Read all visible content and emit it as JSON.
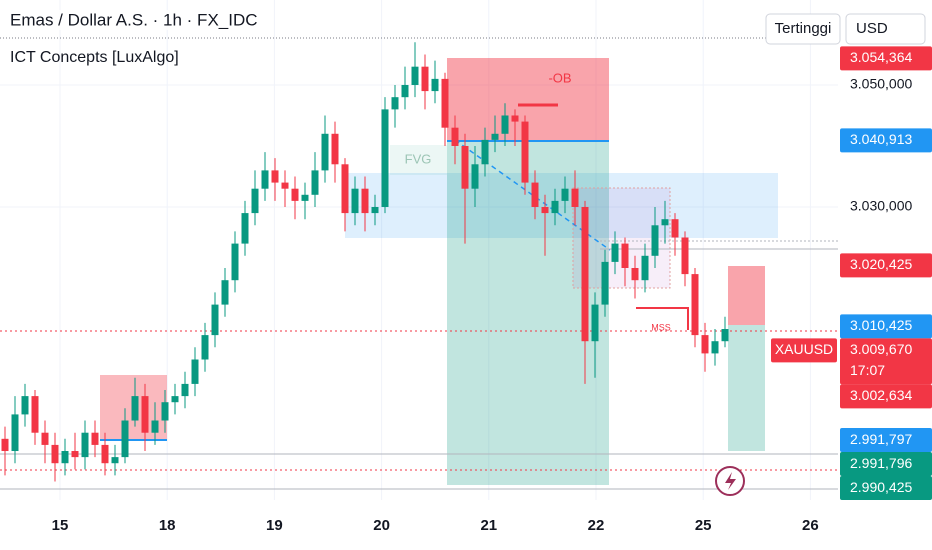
{
  "chart_data": {
    "type": "candlestick",
    "title": "Emas / Dollar A.S. · 1h · FX_IDC",
    "subtitle": "ICT Concepts [LuxAlgo]",
    "buttons": [
      "Tertinggi",
      "USD"
    ],
    "annotations": {
      "fvg": "FVG",
      "ob": "-OB",
      "mss": "MSS"
    },
    "symbol": "XAUUSD",
    "countdown": "17:07",
    "up_color": "#089981",
    "down_color": "#f23645",
    "grid": true,
    "open": [
      2992,
      2990,
      2996,
      2999,
      2993,
      2991,
      2988,
      2990,
      2989,
      2993,
      2991,
      2988,
      2989,
      2995,
      2999,
      2993,
      2995,
      2998,
      2999,
      3001,
      3005,
      3009,
      3014,
      3018,
      3024,
      3029,
      3033,
      3036,
      3034,
      3033,
      3031,
      3032,
      3036,
      3042,
      3037,
      3029,
      3033,
      3029,
      3030,
      3046,
      3048,
      3050,
      3053,
      3049,
      3051,
      3043,
      3040,
      3033,
      3037,
      3041,
      3042,
      3045,
      3044,
      3034,
      3030,
      3029,
      3031,
      3033,
      3030,
      3008,
      3014,
      3021,
      3024,
      3020,
      3018,
      3022,
      3027,
      3028,
      3025,
      3019,
      3009,
      3006,
      3008
    ],
    "high": [
      2994,
      2999,
      3001,
      3000,
      2995,
      2993,
      2992,
      2993,
      2995,
      2995,
      2993,
      2991,
      2997,
      3002,
      3001,
      2998,
      3000,
      3001,
      3003,
      3007,
      3011,
      3016,
      3020,
      3026,
      3031,
      3036,
      3039,
      3038,
      3036,
      3035,
      3034,
      3039,
      3045,
      3044,
      3038,
      3035,
      3035,
      3032,
      3048,
      3050,
      3053,
      3057,
      3055,
      3054,
      3052,
      3045,
      3042,
      3040,
      3043,
      3045,
      3047,
      3046,
      3045,
      3036,
      3032,
      3033,
      3035,
      3036,
      3031,
      3016,
      3023,
      3026,
      3025,
      3022,
      3024,
      3030,
      3031,
      3029,
      3026,
      3020,
      3011,
      3010,
      3012
    ],
    "low": [
      2986,
      2988,
      2994,
      2991,
      2988,
      2985,
      2986,
      2987,
      2987,
      2989,
      2986,
      2986,
      2988,
      2994,
      2990,
      2991,
      2993,
      2996,
      2997,
      2999,
      3003,
      3007,
      3012,
      3016,
      3022,
      3027,
      3031,
      3031,
      3030,
      3028,
      3028,
      3030,
      3034,
      3034,
      3026,
      3027,
      3026,
      3027,
      3029,
      3043,
      3046,
      3048,
      3046,
      3047,
      3040,
      3037,
      3024,
      3030,
      3035,
      3039,
      3040,
      3040,
      3032,
      3028,
      3022,
      3027,
      3029,
      3027,
      3001,
      3002,
      3012,
      3019,
      3017,
      3015,
      3016,
      3020,
      3024,
      3022,
      3017,
      3007,
      3003,
      3004,
      3007
    ],
    "close": [
      2990,
      2996,
      2999,
      2993,
      2991,
      2988,
      2990,
      2989,
      2993,
      2991,
      2988,
      2989,
      2995,
      2999,
      2993,
      2995,
      2998,
      2999,
      3001,
      3005,
      3009,
      3014,
      3018,
      3024,
      3029,
      3033,
      3036,
      3034,
      3033,
      3031,
      3032,
      3036,
      3042,
      3037,
      3029,
      3033,
      3029,
      3030,
      3046,
      3048,
      3050,
      3053,
      3049,
      3051,
      3043,
      3040,
      3033,
      3037,
      3041,
      3042,
      3045,
      3044,
      3034,
      3030,
      3029,
      3031,
      3033,
      3030,
      3008,
      3014,
      3021,
      3024,
      3020,
      3018,
      3022,
      3027,
      3028,
      3025,
      3019,
      3009,
      3006,
      3008,
      3010
    ],
    "xtick_labels": [
      "15",
      "18",
      "19",
      "20",
      "21",
      "22",
      "25",
      "26"
    ],
    "ylim": [
      2981.97,
      3063.93
    ],
    "yticks": [
      {
        "value": 3050,
        "label": "3.050,000"
      },
      {
        "value": 3030,
        "label": "3.030,000"
      }
    ],
    "price_tags": [
      {
        "value": 3054.364,
        "label": "3.054,364",
        "color": "#f23645"
      },
      {
        "value": 3040.913,
        "label": "3.040,913",
        "color": "#2196f3"
      },
      {
        "value": 3020.425,
        "label": "3.020,425",
        "color": "#f23645"
      },
      {
        "value": 3010.425,
        "label": "3.010,425",
        "color": "#2196f3"
      },
      {
        "value": 3009.67,
        "label": "3.009,670",
        "color": "#f23645"
      },
      {
        "value": 3002.634,
        "label": "3.002,634",
        "color": "#f23645"
      },
      {
        "value": 2991.797,
        "label": "2.991,797",
        "color": "#2196f3"
      },
      {
        "value": 2991.796,
        "label": "2.991,796",
        "color": "#089981"
      },
      {
        "value": 2990.425,
        "label": "2.990,425",
        "color": "#089981"
      }
    ]
  }
}
